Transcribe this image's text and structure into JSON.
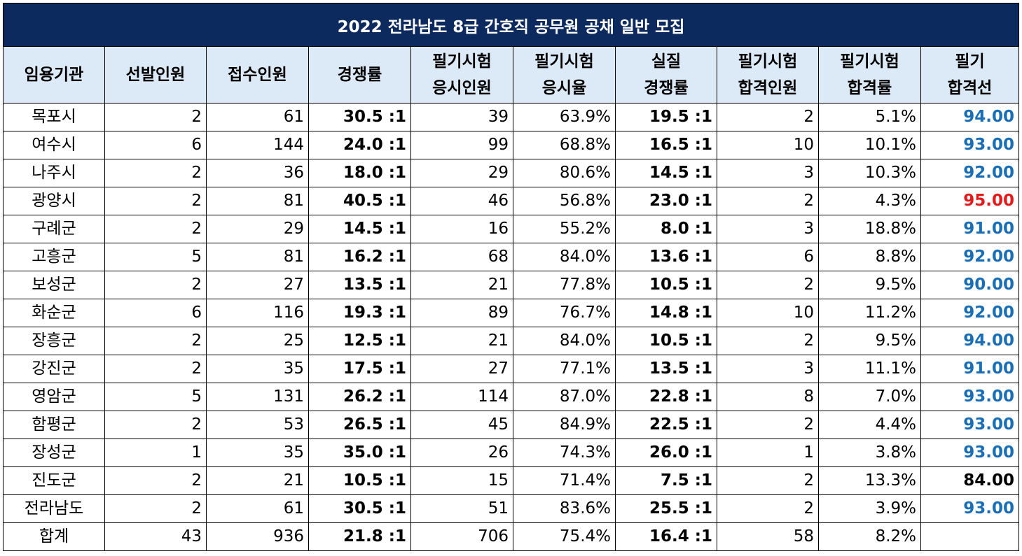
{
  "title": "2022 전라남도 8급 간호직 공무원 공채 일반 모집",
  "headers": [
    [
      "임용기관"
    ],
    [
      "선발인원"
    ],
    [
      "접수인원"
    ],
    [
      "경쟁률"
    ],
    [
      "필기시험",
      "응시인원"
    ],
    [
      "필기시험",
      "응시율"
    ],
    [
      "실질",
      "경쟁률"
    ],
    [
      "필기시험",
      "합격인원"
    ],
    [
      "필기시험",
      "합격률"
    ],
    [
      "필기",
      "합격선"
    ]
  ],
  "rows": [
    {
      "agency": "목포시",
      "selected": "2",
      "applicants": "61",
      "ratio": "30.5 :1",
      "takers": "39",
      "take_rate": "63.9%",
      "real_ratio": "19.5 :1",
      "passers": "2",
      "pass_rate": "5.1%",
      "cutoff": "94.00",
      "cutoff_color": "blue"
    },
    {
      "agency": "여수시",
      "selected": "6",
      "applicants": "144",
      "ratio": "24.0 :1",
      "takers": "99",
      "take_rate": "68.8%",
      "real_ratio": "16.5 :1",
      "passers": "10",
      "pass_rate": "10.1%",
      "cutoff": "93.00",
      "cutoff_color": "blue"
    },
    {
      "agency": "나주시",
      "selected": "2",
      "applicants": "36",
      "ratio": "18.0 :1",
      "takers": "29",
      "take_rate": "80.6%",
      "real_ratio": "14.5 :1",
      "passers": "3",
      "pass_rate": "10.3%",
      "cutoff": "92.00",
      "cutoff_color": "blue"
    },
    {
      "agency": "광양시",
      "selected": "2",
      "applicants": "81",
      "ratio": "40.5 :1",
      "takers": "46",
      "take_rate": "56.8%",
      "real_ratio": "23.0 :1",
      "passers": "2",
      "pass_rate": "4.3%",
      "cutoff": "95.00",
      "cutoff_color": "red"
    },
    {
      "agency": "구례군",
      "selected": "2",
      "applicants": "29",
      "ratio": "14.5 :1",
      "takers": "16",
      "take_rate": "55.2%",
      "real_ratio": "8.0 :1",
      "passers": "3",
      "pass_rate": "18.8%",
      "cutoff": "91.00",
      "cutoff_color": "blue"
    },
    {
      "agency": "고흥군",
      "selected": "5",
      "applicants": "81",
      "ratio": "16.2 :1",
      "takers": "68",
      "take_rate": "84.0%",
      "real_ratio": "13.6 :1",
      "passers": "6",
      "pass_rate": "8.8%",
      "cutoff": "92.00",
      "cutoff_color": "blue"
    },
    {
      "agency": "보성군",
      "selected": "2",
      "applicants": "27",
      "ratio": "13.5 :1",
      "takers": "21",
      "take_rate": "77.8%",
      "real_ratio": "10.5 :1",
      "passers": "2",
      "pass_rate": "9.5%",
      "cutoff": "90.00",
      "cutoff_color": "blue"
    },
    {
      "agency": "화순군",
      "selected": "6",
      "applicants": "116",
      "ratio": "19.3 :1",
      "takers": "89",
      "take_rate": "76.7%",
      "real_ratio": "14.8 :1",
      "passers": "10",
      "pass_rate": "11.2%",
      "cutoff": "92.00",
      "cutoff_color": "blue"
    },
    {
      "agency": "장흥군",
      "selected": "2",
      "applicants": "25",
      "ratio": "12.5 :1",
      "takers": "21",
      "take_rate": "84.0%",
      "real_ratio": "10.5 :1",
      "passers": "2",
      "pass_rate": "9.5%",
      "cutoff": "94.00",
      "cutoff_color": "blue"
    },
    {
      "agency": "강진군",
      "selected": "2",
      "applicants": "35",
      "ratio": "17.5 :1",
      "takers": "27",
      "take_rate": "77.1%",
      "real_ratio": "13.5 :1",
      "passers": "3",
      "pass_rate": "11.1%",
      "cutoff": "91.00",
      "cutoff_color": "blue"
    },
    {
      "agency": "영암군",
      "selected": "5",
      "applicants": "131",
      "ratio": "26.2 :1",
      "takers": "114",
      "take_rate": "87.0%",
      "real_ratio": "22.8 :1",
      "passers": "8",
      "pass_rate": "7.0%",
      "cutoff": "93.00",
      "cutoff_color": "blue"
    },
    {
      "agency": "함평군",
      "selected": "2",
      "applicants": "53",
      "ratio": "26.5 :1",
      "takers": "45",
      "take_rate": "84.9%",
      "real_ratio": "22.5 :1",
      "passers": "2",
      "pass_rate": "4.4%",
      "cutoff": "93.00",
      "cutoff_color": "blue"
    },
    {
      "agency": "장성군",
      "selected": "1",
      "applicants": "35",
      "ratio": "35.0 :1",
      "takers": "26",
      "take_rate": "74.3%",
      "real_ratio": "26.0 :1",
      "passers": "1",
      "pass_rate": "3.8%",
      "cutoff": "93.00",
      "cutoff_color": "blue"
    },
    {
      "agency": "진도군",
      "selected": "2",
      "applicants": "21",
      "ratio": "10.5 :1",
      "takers": "15",
      "take_rate": "71.4%",
      "real_ratio": "7.5 :1",
      "passers": "2",
      "pass_rate": "13.3%",
      "cutoff": "84.00",
      "cutoff_color": "black"
    },
    {
      "agency": "전라남도",
      "selected": "2",
      "applicants": "61",
      "ratio": "30.5 :1",
      "takers": "51",
      "take_rate": "83.6%",
      "real_ratio": "25.5 :1",
      "passers": "2",
      "pass_rate": "3.9%",
      "cutoff": "93.00",
      "cutoff_color": "blue"
    },
    {
      "agency": "합계",
      "selected": "43",
      "applicants": "936",
      "ratio": "21.8 :1",
      "takers": "706",
      "take_rate": "75.4%",
      "real_ratio": "16.4 :1",
      "passers": "58",
      "pass_rate": "8.2%",
      "cutoff": "",
      "cutoff_color": "black"
    }
  ]
}
